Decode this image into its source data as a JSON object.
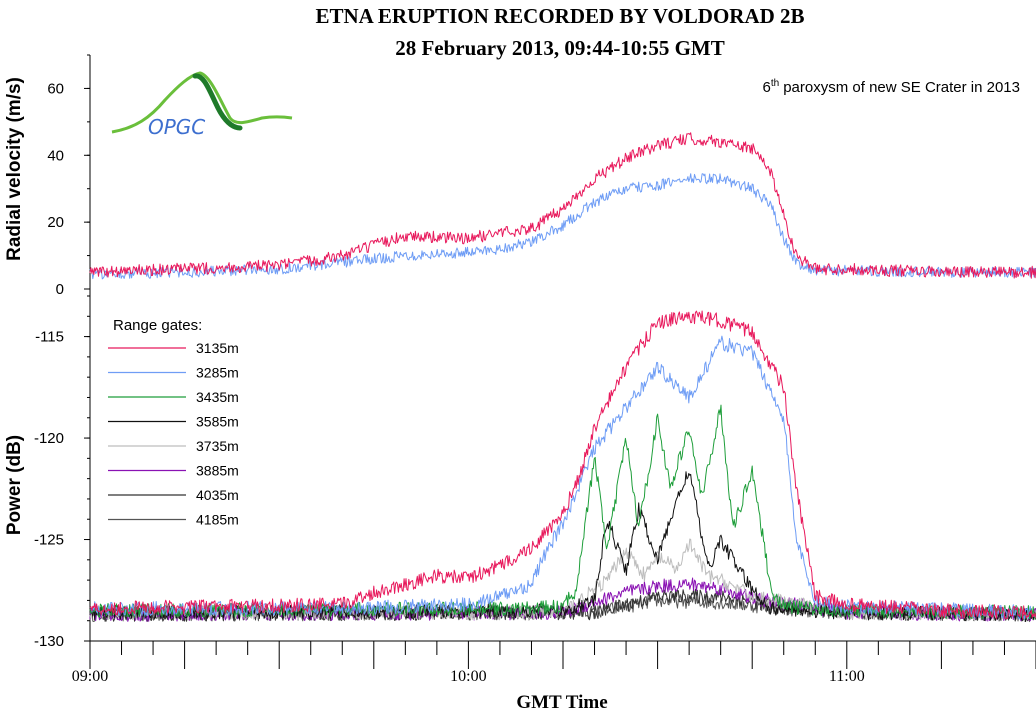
{
  "chart_data": [
    {
      "type": "line",
      "title": "ETNA ERUPTION RECORDED BY VOLDORAD 2B",
      "subtitle": "28 February 2013, 09:44-10:55 GMT",
      "annotation": {
        "text": "paroxysm of new SE Crater in 2013",
        "ordinal": "6",
        "ordinal_suffix": "th"
      },
      "logo_text": "OPGC",
      "ylabel": "Radial velocity (m/s)",
      "xlabel": "",
      "ylim": [
        0,
        70
      ],
      "yticks": [
        0,
        20,
        40,
        60
      ],
      "xlim": [
        "09:00",
        "11:30"
      ],
      "grid": false,
      "series": [
        {
          "color": "#e8195c",
          "x": [
            "09:00",
            "09:15",
            "09:30",
            "09:40",
            "09:50",
            "10:00",
            "10:05",
            "10:10",
            "10:15",
            "10:20",
            "10:25",
            "10:30",
            "10:35",
            "10:40",
            "10:45",
            "10:48",
            "10:50",
            "10:52",
            "10:55",
            "11:00",
            "11:15",
            "11:30"
          ],
          "values": [
            5,
            6,
            7,
            10,
            16,
            15,
            17,
            18,
            24,
            33,
            39,
            43,
            45,
            44,
            42,
            35,
            22,
            10,
            6,
            6,
            5,
            5
          ]
        },
        {
          "color": "#6f9df5",
          "x": [
            "09:00",
            "09:15",
            "09:30",
            "09:40",
            "09:50",
            "10:00",
            "10:05",
            "10:10",
            "10:15",
            "10:20",
            "10:25",
            "10:30",
            "10:35",
            "10:40",
            "10:45",
            "10:48",
            "10:50",
            "10:52",
            "10:55",
            "11:00",
            "11:15",
            "11:30"
          ],
          "values": [
            4.5,
            5,
            6,
            8,
            10,
            11,
            12,
            14,
            19,
            26,
            30,
            31,
            33,
            33,
            30,
            25,
            15,
            8,
            5.5,
            5.5,
            5,
            5
          ]
        }
      ]
    },
    {
      "type": "line",
      "ylabel": "Power (dB)",
      "xlabel": "GMT Time",
      "ylim": [
        -130,
        -113
      ],
      "yticks": [
        -130,
        -125,
        -120,
        -115
      ],
      "xlim": [
        "09:00",
        "11:30"
      ],
      "xticks": [
        "09:00",
        "10:00",
        "11:00"
      ],
      "grid": false,
      "legend": {
        "title": "Range gates:",
        "placement": "top-left"
      },
      "series": [
        {
          "name": "3135m",
          "color": "#e8195c",
          "x": [
            "09:00",
            "09:40",
            "09:45",
            "09:55",
            "10:00",
            "10:05",
            "10:10",
            "10:15",
            "10:18",
            "10:20",
            "10:25",
            "10:30",
            "10:35",
            "10:40",
            "10:45",
            "10:50",
            "10:52",
            "10:55",
            "11:00",
            "11:15",
            "11:30"
          ],
          "values": [
            -128.4,
            -128.2,
            -127.6,
            -126.8,
            -126.9,
            -126.3,
            -125.4,
            -123.8,
            -121.5,
            -119.5,
            -116.5,
            -114.3,
            -114.0,
            -114.2,
            -114.8,
            -117.5,
            -122.5,
            -127.8,
            -128.2,
            -128.5,
            -128.6
          ]
        },
        {
          "name": "3285m",
          "color": "#6f9df5",
          "x": [
            "09:00",
            "09:40",
            "10:00",
            "10:05",
            "10:10",
            "10:12",
            "10:15",
            "10:20",
            "10:25",
            "10:30",
            "10:35",
            "10:40",
            "10:45",
            "10:50",
            "10:52",
            "10:55",
            "11:00",
            "11:30"
          ],
          "values": [
            -128.4,
            -128.4,
            -128.2,
            -127.8,
            -127.2,
            -125.8,
            -124.2,
            -120.5,
            -118.5,
            -116.5,
            -118.0,
            -115.3,
            -115.8,
            -119.0,
            -125.0,
            -128.0,
            -128.3,
            -128.6
          ]
        },
        {
          "name": "3435m",
          "color": "#1e9e3a",
          "x": [
            "09:00",
            "10:10",
            "10:15",
            "10:17",
            "10:20",
            "10:22",
            "10:25",
            "10:27",
            "10:30",
            "10:32",
            "10:35",
            "10:37",
            "10:40",
            "10:42",
            "10:45",
            "10:48",
            "10:50",
            "11:00",
            "11:30"
          ],
          "values": [
            -128.5,
            -128.4,
            -128.3,
            -127.5,
            -121.0,
            -125.5,
            -120.0,
            -124.5,
            -119.0,
            -122.5,
            -119.5,
            -123.0,
            -118.5,
            -124.5,
            -121.5,
            -127.5,
            -128.3,
            -128.5,
            -128.6
          ]
        },
        {
          "name": "3585m",
          "color": "#111111",
          "x": [
            "09:00",
            "10:15",
            "10:20",
            "10:22",
            "10:25",
            "10:27",
            "10:30",
            "10:32",
            "10:35",
            "10:38",
            "10:40",
            "10:45",
            "10:48",
            "11:00",
            "11:30"
          ],
          "values": [
            -128.6,
            -128.5,
            -128.0,
            -124.0,
            -126.5,
            -123.5,
            -126.0,
            -124.0,
            -121.5,
            -126.5,
            -125.0,
            -127.5,
            -128.4,
            -128.6,
            -128.7
          ]
        },
        {
          "name": "3735m",
          "color": "#bdbdbd",
          "x": [
            "09:00",
            "10:15",
            "10:22",
            "10:25",
            "10:28",
            "10:30",
            "10:33",
            "10:35",
            "10:38",
            "10:40",
            "10:45",
            "11:00",
            "11:30"
          ],
          "values": [
            -128.6,
            -128.6,
            -127.0,
            -125.5,
            -126.8,
            -125.8,
            -126.5,
            -125.2,
            -126.8,
            -127.0,
            -127.8,
            -128.6,
            -128.7
          ]
        },
        {
          "name": "3885m",
          "color": "#8a12b3",
          "x": [
            "09:00",
            "10:15",
            "10:25",
            "10:30",
            "10:35",
            "10:40",
            "10:45",
            "11:00",
            "11:30"
          ],
          "values": [
            -128.7,
            -128.6,
            -127.6,
            -127.3,
            -127.2,
            -127.4,
            -127.9,
            -128.6,
            -128.7
          ]
        },
        {
          "name": "4035m",
          "color": "#333333",
          "x": [
            "09:00",
            "10:20",
            "10:30",
            "10:40",
            "10:50",
            "11:00",
            "11:30"
          ],
          "values": [
            -128.7,
            -128.6,
            -127.8,
            -127.8,
            -128.3,
            -128.6,
            -128.7
          ]
        },
        {
          "name": "4185m",
          "color": "#555555",
          "x": [
            "09:00",
            "10:20",
            "10:30",
            "10:40",
            "10:50",
            "11:00",
            "11:30"
          ],
          "values": [
            -128.7,
            -128.6,
            -128.0,
            -128.1,
            -128.4,
            -128.6,
            -128.7
          ]
        }
      ]
    }
  ]
}
